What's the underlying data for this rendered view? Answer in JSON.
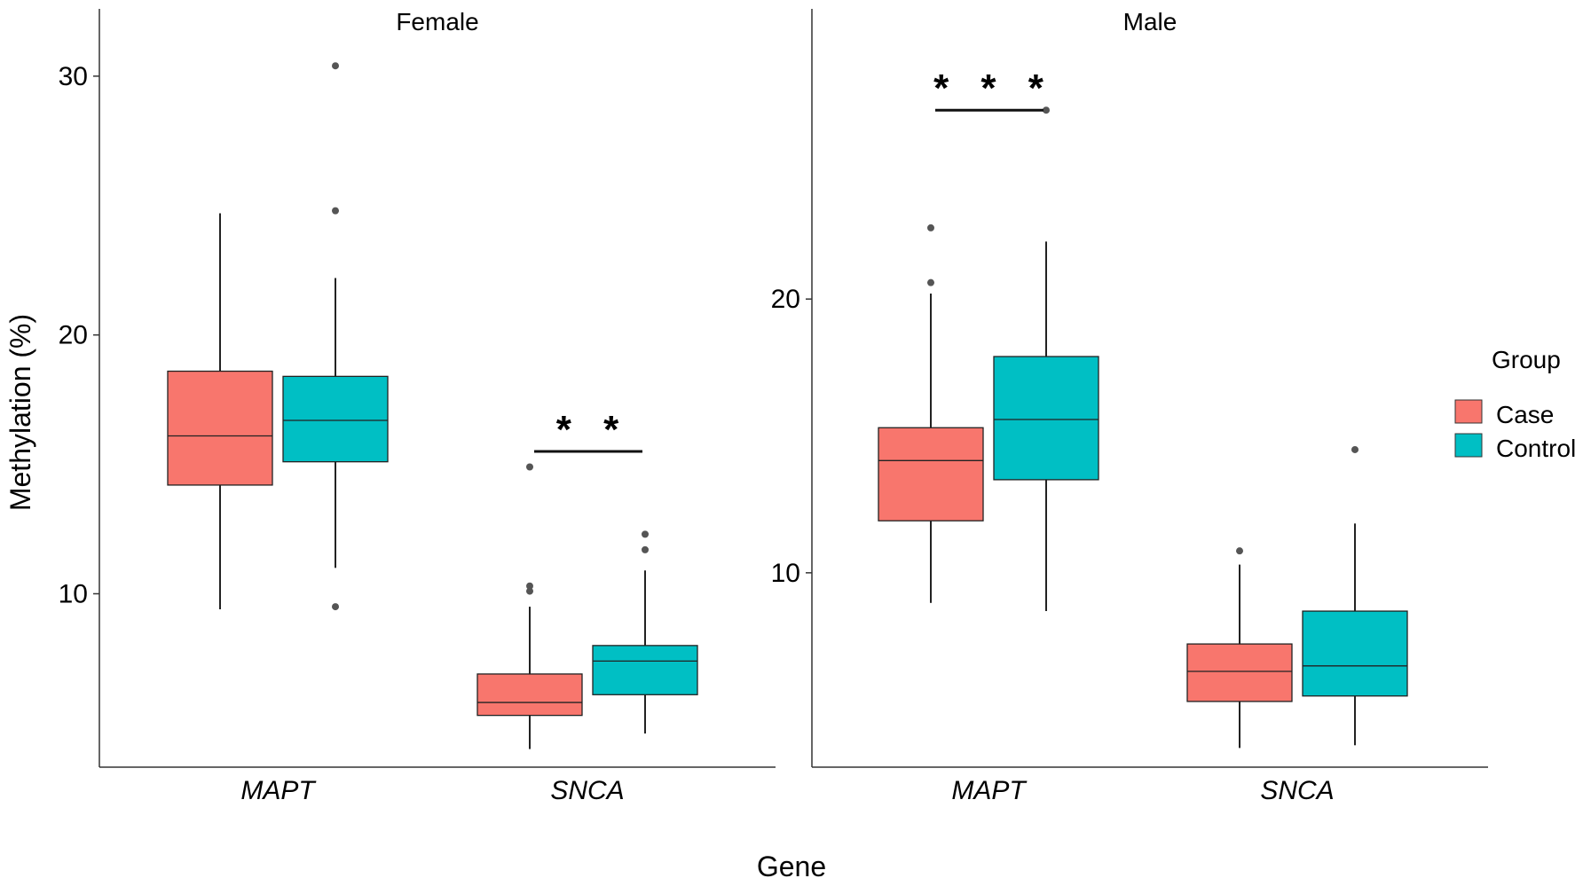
{
  "chart_data": {
    "type": "boxplot",
    "xlabel": "Gene",
    "ylabel": "Methylation (%)",
    "legend": {
      "title": "Group",
      "position": "right",
      "entries": [
        {
          "name": "Case",
          "color": "#F8766D"
        },
        {
          "name": "Control",
          "color": "#00BFC4"
        }
      ]
    },
    "panels": [
      {
        "title": "Female",
        "ylim": [
          3.3,
          32.6
        ],
        "yticks": [
          10,
          20,
          30
        ],
        "categories": [
          "MAPT",
          "SNCA"
        ],
        "boxes": [
          {
            "category": "MAPT",
            "group": "Case",
            "min": 9.4,
            "q1": 14.2,
            "median": 16.1,
            "q3": 18.6,
            "max": 24.7,
            "outliers": []
          },
          {
            "category": "MAPT",
            "group": "Control",
            "min": 11.0,
            "q1": 15.1,
            "median": 16.7,
            "q3": 18.4,
            "max": 22.2,
            "outliers": [
              9.5,
              24.8,
              30.4
            ]
          },
          {
            "category": "SNCA",
            "group": "Case",
            "min": 4.0,
            "q1": 5.3,
            "median": 5.8,
            "q3": 6.9,
            "max": 9.5,
            "outliers": [
              10.1,
              10.3,
              14.9
            ]
          },
          {
            "category": "SNCA",
            "group": "Control",
            "min": 4.6,
            "q1": 6.1,
            "median": 7.4,
            "q3": 8.0,
            "max": 10.9,
            "outliers": [
              11.7,
              12.3
            ]
          }
        ],
        "annotations": [
          {
            "text": "* *",
            "category": "SNCA",
            "y": 15.5
          }
        ]
      },
      {
        "title": "Male",
        "ylim": [
          2.9,
          30.6
        ],
        "yticks": [
          10,
          20
        ],
        "categories": [
          "MAPT",
          "SNCA"
        ],
        "boxes": [
          {
            "category": "MAPT",
            "group": "Case",
            "min": 8.9,
            "q1": 11.9,
            "median": 14.1,
            "q3": 15.3,
            "max": 20.2,
            "outliers": [
              20.6,
              22.6
            ]
          },
          {
            "category": "MAPT",
            "group": "Control",
            "min": 8.6,
            "q1": 13.4,
            "median": 15.6,
            "q3": 17.9,
            "max": 22.1,
            "outliers": [
              26.9
            ]
          },
          {
            "category": "SNCA",
            "group": "Case",
            "min": 3.6,
            "q1": 5.3,
            "median": 6.4,
            "q3": 7.4,
            "max": 10.3,
            "outliers": [
              10.8
            ]
          },
          {
            "category": "SNCA",
            "group": "Control",
            "min": 3.7,
            "q1": 5.5,
            "median": 6.6,
            "q3": 8.6,
            "max": 11.8,
            "outliers": [
              14.5
            ]
          }
        ],
        "annotations": [
          {
            "text": "* * *",
            "category": "MAPT",
            "y": 26.9
          }
        ]
      }
    ]
  }
}
